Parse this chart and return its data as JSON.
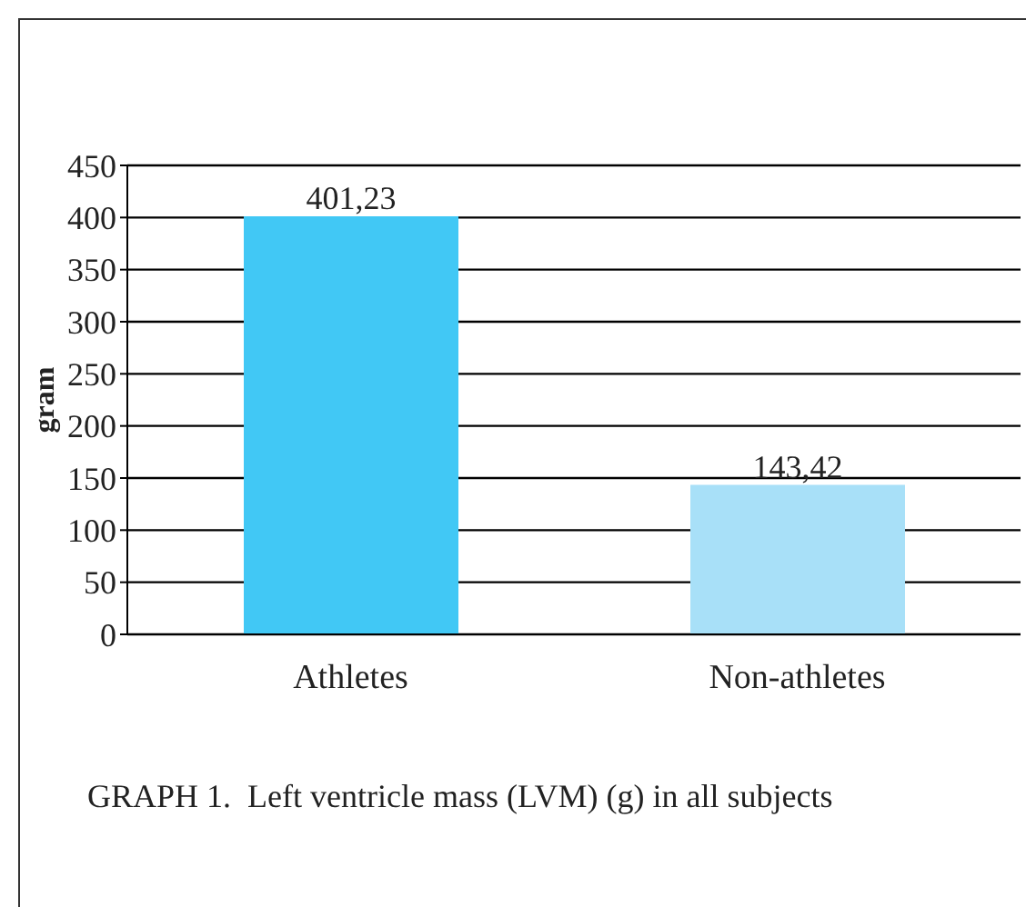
{
  "chart_data": {
    "type": "bar",
    "title": "GRAPH 1.  Left ventricle mass (LVM) (g) in all subjects",
    "ylabel": "gram",
    "categories": [
      "Athletes",
      "Non-athletes"
    ],
    "values": [
      401.23,
      143.42
    ],
    "colors": [
      "#41c8f5",
      "#a8e0f8"
    ],
    "value_labels": [
      "401,23",
      "143,42"
    ],
    "ylim": [
      0,
      450
    ],
    "yticks": [
      0,
      50,
      100,
      150,
      200,
      250,
      300,
      350,
      400,
      450
    ],
    "grid": "y",
    "legend": false
  }
}
